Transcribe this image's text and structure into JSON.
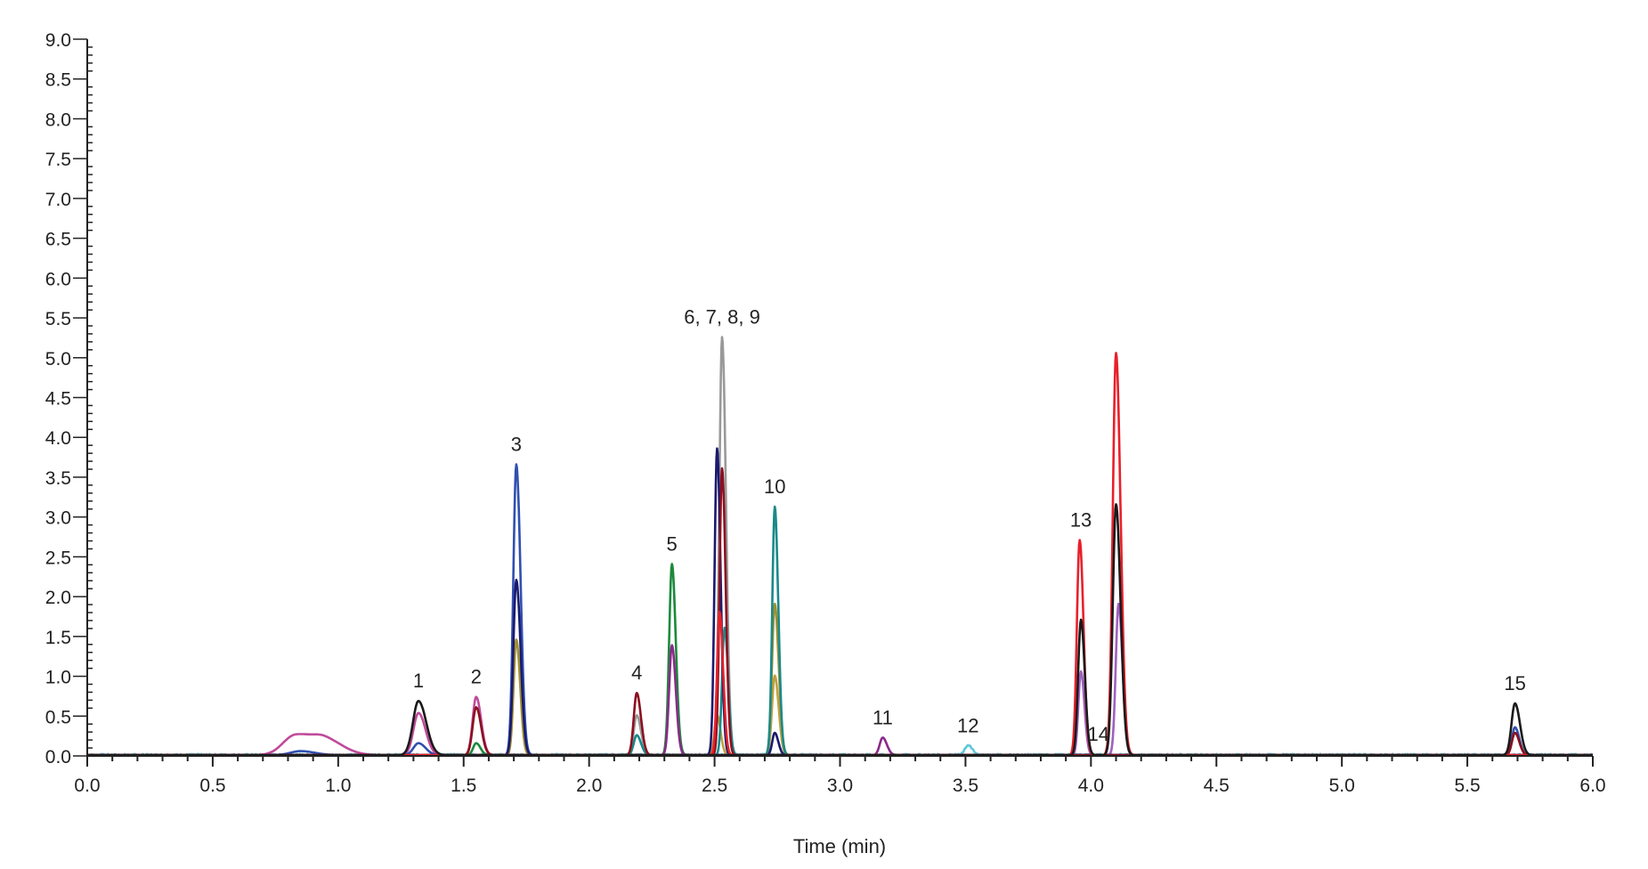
{
  "chart_data": {
    "type": "line",
    "title": "",
    "xlabel": "Time (min)",
    "ylabel": "",
    "xlim": [
      0,
      6.0
    ],
    "ylim": [
      0,
      9.0
    ],
    "grid": false,
    "x_ticks": [
      "0.0",
      "0.5",
      "1.0",
      "1.5",
      "2.0",
      "2.5",
      "3.0",
      "3.5",
      "4.0",
      "4.5",
      "5.0",
      "5.5",
      "6.0"
    ],
    "y_ticks": [
      "0.0",
      "0.5",
      "1.0",
      "1.5",
      "2.0",
      "2.5",
      "3.0",
      "3.5",
      "4.0",
      "4.5",
      "5.0",
      "5.5",
      "6.0",
      "6.5",
      "7.0",
      "7.5",
      "8.0",
      "8.5",
      "9.0"
    ],
    "peak_labels": [
      {
        "text": "1",
        "time": 1.32
      },
      {
        "text": "2",
        "time": 1.55
      },
      {
        "text": "3",
        "time": 1.71
      },
      {
        "text": "4",
        "time": 2.19
      },
      {
        "text": "5",
        "time": 2.33
      },
      {
        "text": "6, 7, 8, 9",
        "time": 2.53
      },
      {
        "text": "10",
        "time": 2.74
      },
      {
        "text": "11",
        "time": 3.17
      },
      {
        "text": "12",
        "time": 3.51
      },
      {
        "text": "13",
        "time": 3.96
      },
      {
        "text": "14",
        "time": 4.03
      },
      {
        "text": "15",
        "time": 5.69
      }
    ],
    "series": [
      {
        "color": "#60c8d8",
        "peaks": [
          [
            3.51,
            0.12,
            0.012
          ]
        ],
        "noise": 0.03
      },
      {
        "color": "#999999",
        "peaks": [
          [
            2.19,
            0.5,
            0.012
          ],
          [
            2.53,
            5.25,
            0.011
          ]
        ]
      },
      {
        "color": "#c0a040",
        "peaks": [
          [
            2.51,
            0.5,
            0.01
          ],
          [
            2.74,
            1.0,
            0.011
          ]
        ]
      },
      {
        "color": "#a09030",
        "peaks": [
          [
            1.71,
            1.45,
            0.011
          ],
          [
            2.74,
            1.9,
            0.011
          ]
        ]
      },
      {
        "color": "#1a8a8a",
        "peaks": [
          [
            2.19,
            0.25,
            0.012
          ],
          [
            2.54,
            1.6,
            0.01
          ],
          [
            2.74,
            3.12,
            0.01
          ]
        ]
      },
      {
        "color": "#1a8a3a",
        "peaks": [
          [
            1.55,
            0.15,
            0.012
          ],
          [
            2.33,
            2.4,
            0.011
          ]
        ]
      },
      {
        "color": "#8a2a8a",
        "peaks": [
          [
            2.33,
            1.38,
            0.011
          ],
          [
            3.17,
            0.22,
            0.012
          ]
        ]
      },
      {
        "color": "#a060c0",
        "peaks": [
          [
            3.96,
            1.05,
            0.01
          ],
          [
            4.11,
            1.9,
            0.011
          ]
        ]
      },
      {
        "color": "#c04a9a",
        "peaks": [
          [
            0.83,
            0.25,
            0.05
          ],
          [
            0.95,
            0.18,
            0.05
          ],
          [
            1.32,
            0.53,
            0.02
          ],
          [
            1.55,
            0.73,
            0.014
          ]
        ]
      },
      {
        "color": "#3050b0",
        "peaks": [
          [
            0.85,
            0.05,
            0.04
          ],
          [
            1.32,
            0.15,
            0.02
          ],
          [
            1.71,
            3.65,
            0.012
          ],
          [
            5.69,
            0.35,
            0.012
          ]
        ]
      },
      {
        "color": "#1a1a6e",
        "peaks": [
          [
            1.71,
            2.2,
            0.012
          ],
          [
            2.51,
            3.85,
            0.01
          ],
          [
            2.74,
            0.28,
            0.01
          ]
        ]
      },
      {
        "color": "#8b1020",
        "peaks": [
          [
            1.55,
            0.6,
            0.014
          ],
          [
            2.19,
            0.78,
            0.012
          ],
          [
            2.53,
            3.6,
            0.01
          ],
          [
            5.69,
            0.28,
            0.012
          ]
        ]
      },
      {
        "color": "#e8202a",
        "peaks": [
          [
            2.52,
            1.8,
            0.01
          ],
          [
            3.955,
            2.7,
            0.011
          ],
          [
            4.1,
            5.05,
            0.013
          ]
        ]
      },
      {
        "color": "#1a1a1a",
        "peaks": [
          [
            1.32,
            0.68,
            0.022
          ],
          [
            3.96,
            1.7,
            0.011
          ],
          [
            4.1,
            3.15,
            0.013
          ],
          [
            5.69,
            0.65,
            0.014
          ]
        ]
      }
    ]
  }
}
